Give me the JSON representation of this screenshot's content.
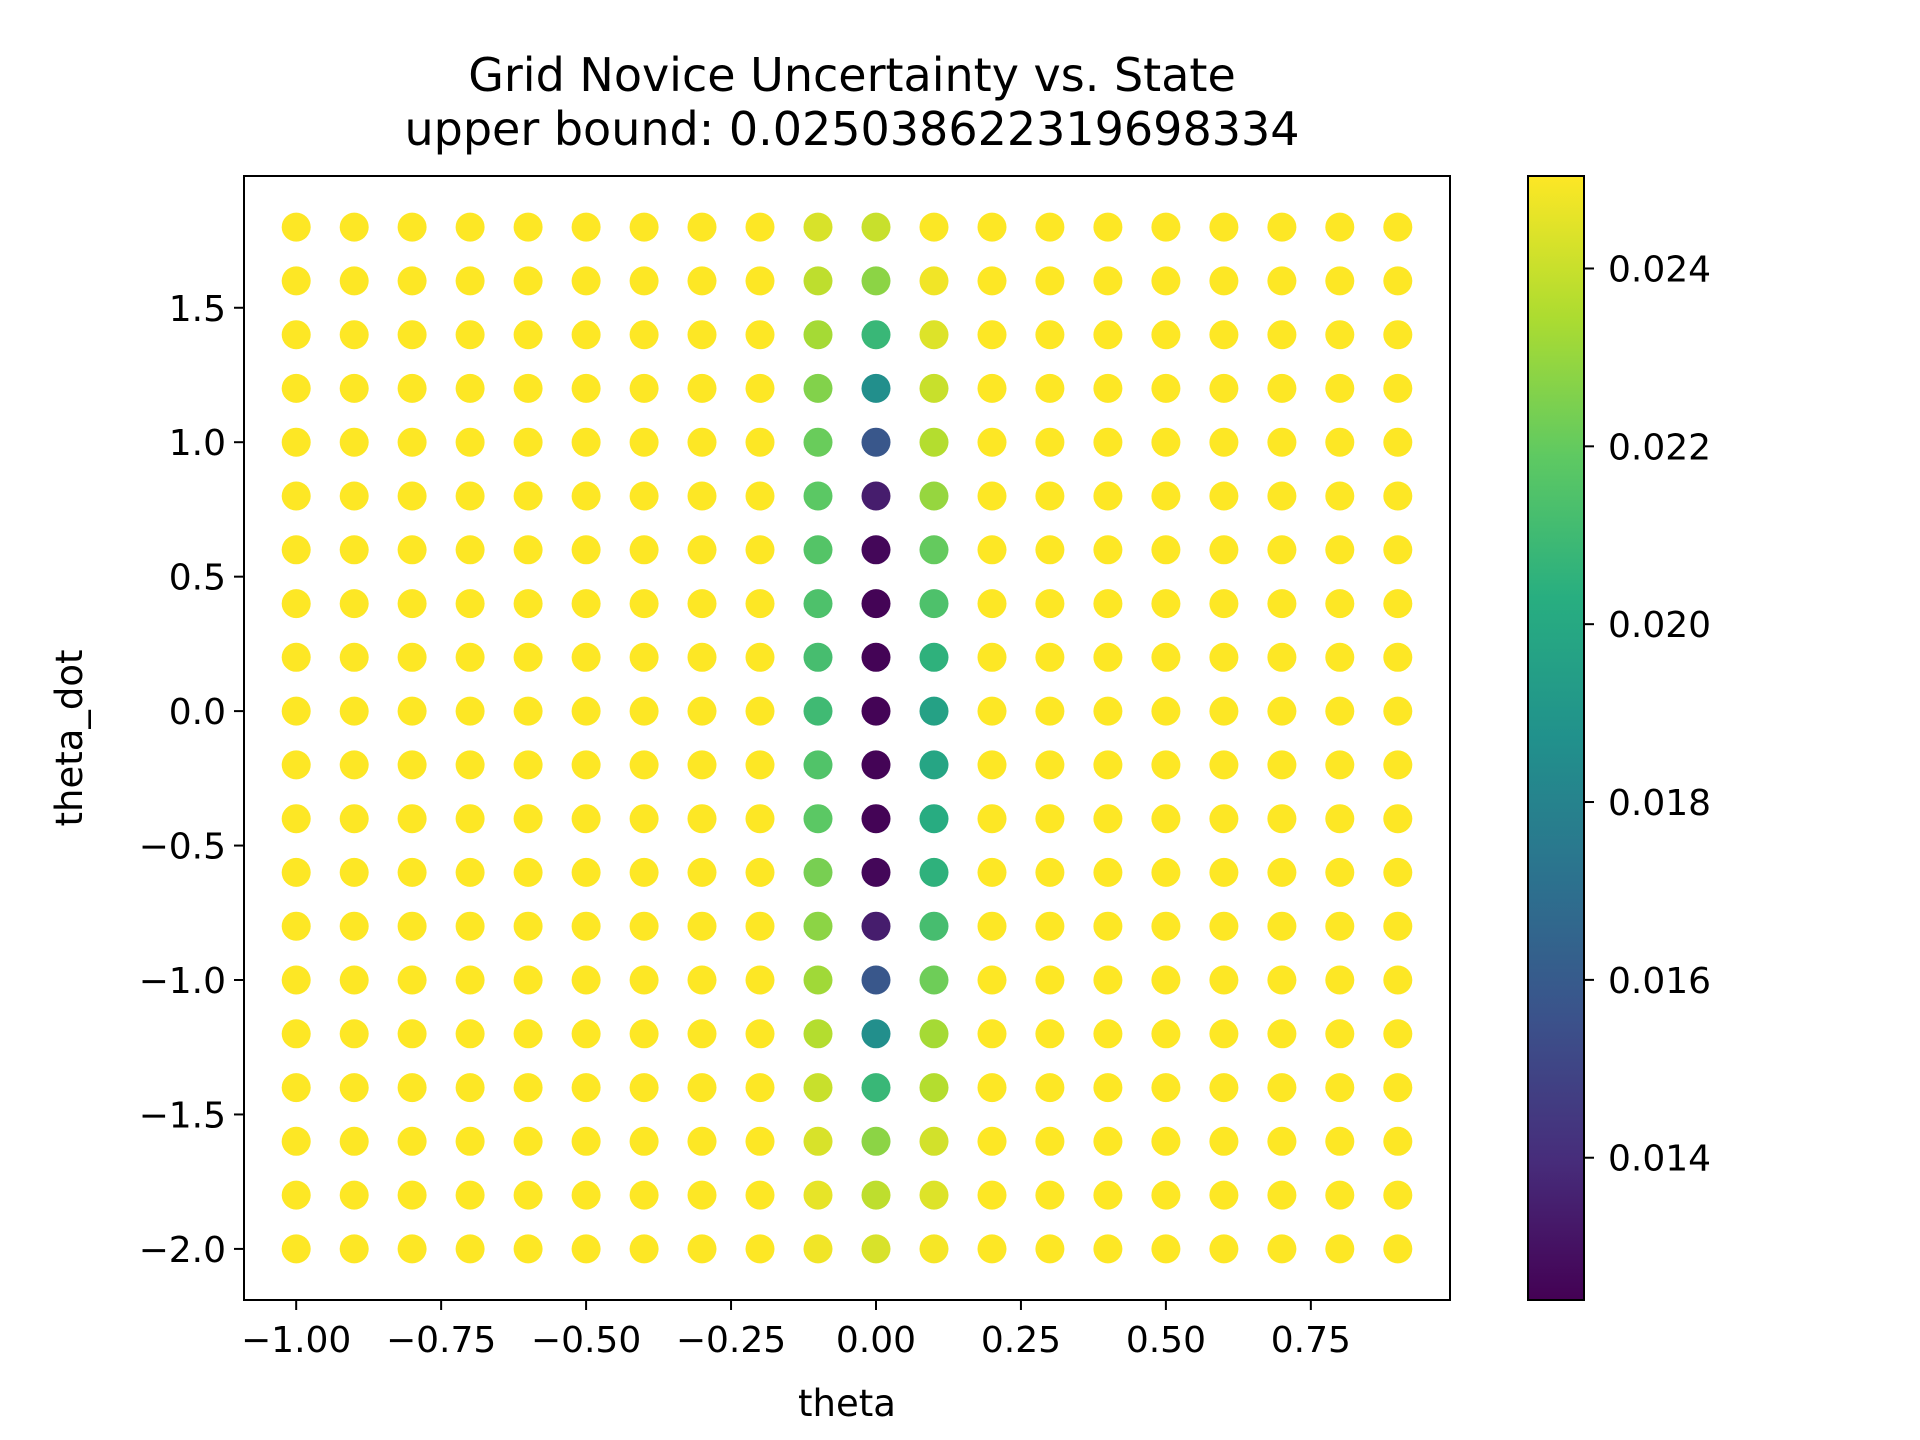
{
  "chart_data": {
    "type": "scatter",
    "title": "Grid Novice Uncertainty vs. State",
    "subtitle": "upper bound: 0.025038622319698334",
    "xlabel": "theta",
    "ylabel": "theta_dot",
    "xlim": [
      -1.09,
      0.99
    ],
    "ylim": [
      -2.19,
      1.99
    ],
    "x_ticks": [
      -1.0,
      -0.75,
      -0.5,
      -0.25,
      0.0,
      0.25,
      0.5,
      0.75
    ],
    "x_tick_labels": [
      "−1.00",
      "−0.75",
      "−0.50",
      "−0.25",
      "0.00",
      "0.25",
      "0.50",
      "0.75"
    ],
    "y_ticks": [
      -2.0,
      -1.5,
      -1.0,
      -0.5,
      0.0,
      0.5,
      1.0,
      1.5
    ],
    "y_tick_labels": [
      "−2.0",
      "−1.5",
      "−1.0",
      "−0.5",
      "0.0",
      "0.5",
      "1.0",
      "1.5"
    ],
    "grid": false,
    "colormap": "viridis",
    "colorbar": {
      "range": [
        0.0124,
        0.02504
      ],
      "ticks": [
        0.014,
        0.016,
        0.018,
        0.02,
        0.022,
        0.024
      ],
      "tick_labels": [
        "0.014",
        "0.016",
        "0.018",
        "0.020",
        "0.022",
        "0.024"
      ]
    },
    "x_values": [
      -1.0,
      -0.9,
      -0.8,
      -0.7,
      -0.6,
      -0.5,
      -0.4,
      -0.3,
      -0.2,
      -0.1,
      0.0,
      0.1,
      0.2,
      0.3,
      0.4,
      0.5,
      0.6,
      0.7,
      0.8,
      0.9
    ],
    "y_values": [
      -2.0,
      -1.8,
      -1.6,
      -1.4,
      -1.2,
      -1.0,
      -0.8,
      -0.6,
      -0.4,
      -0.2,
      0.0,
      0.2,
      0.4,
      0.6,
      0.8,
      1.0,
      1.2,
      1.4,
      1.6,
      1.8
    ],
    "default_value": 0.02504,
    "column_values": {
      "-0.1": [
        0.0248,
        0.0246,
        0.0243,
        0.024,
        0.0236,
        0.0232,
        0.0228,
        0.0224,
        0.0218,
        0.0215,
        0.021,
        0.0212,
        0.0214,
        0.0216,
        0.0218,
        0.0221,
        0.0226,
        0.0233,
        0.0238,
        0.0243
      ],
      "0.0": [
        0.0243,
        0.0238,
        0.0228,
        0.0208,
        0.0186,
        0.0158,
        0.0134,
        0.0126,
        0.0125,
        0.0125,
        0.0125,
        0.0125,
        0.0125,
        0.0126,
        0.0134,
        0.0158,
        0.0186,
        0.0208,
        0.0228,
        0.024
      ],
      "0.1": [
        0.0249,
        0.0244,
        0.0242,
        0.0236,
        0.0233,
        0.0222,
        0.0212,
        0.0205,
        0.0202,
        0.0198,
        0.0196,
        0.0205,
        0.0214,
        0.022,
        0.023,
        0.0236,
        0.024,
        0.0244,
        0.0248,
        0.025
      ]
    }
  }
}
